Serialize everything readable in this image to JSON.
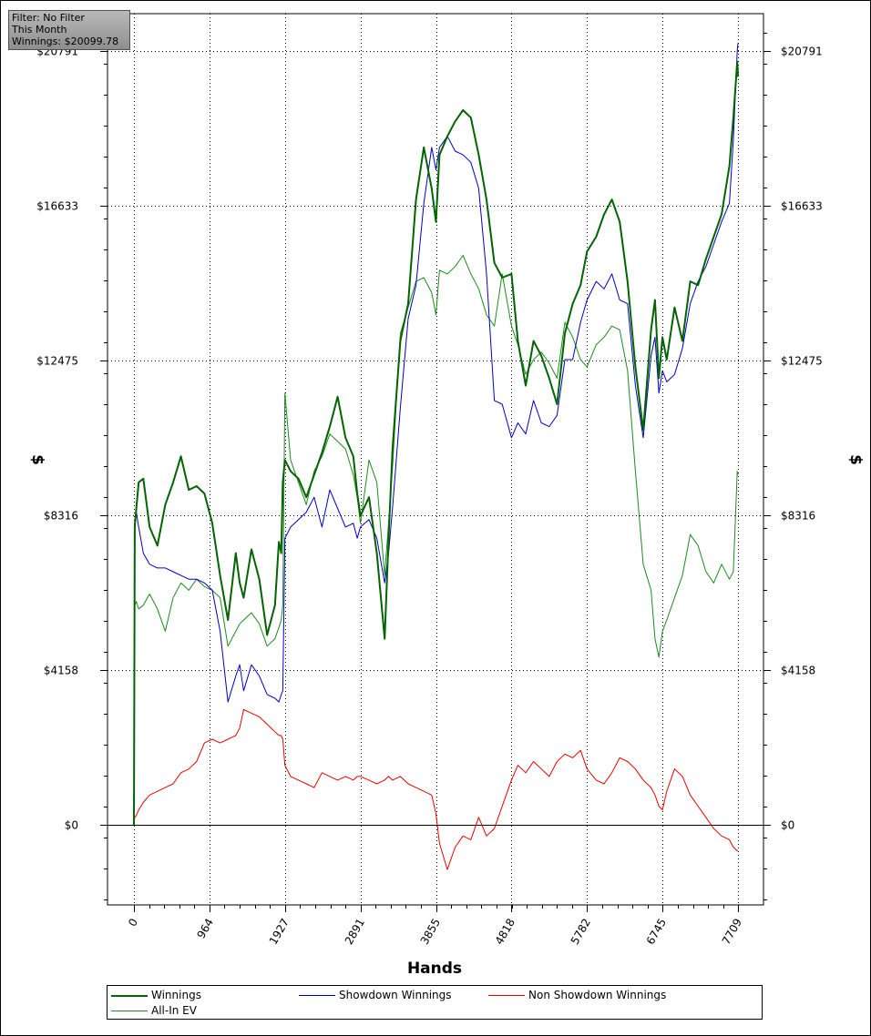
{
  "filter_box": {
    "line1": "Filter: No Filter",
    "line2": "This Month",
    "line3": "Winnings: $20099.78"
  },
  "colors": {
    "winnings": "#006400",
    "showdown": "#0000cc",
    "non_showdown": "#ee0000",
    "allin_ev": "#1e8c1e",
    "grid": "#000000"
  },
  "chart_data": {
    "type": "line",
    "title": "",
    "xlabel": "Hands",
    "ylabel": "$",
    "xlim": [
      0,
      7709
    ],
    "ylim": [
      -2000,
      22000
    ],
    "x_ticks": [
      "0",
      "964",
      "1927",
      "2891",
      "3855",
      "4818",
      "5782",
      "6745",
      "7709"
    ],
    "x_tick_values": [
      0,
      964,
      1927,
      2891,
      3855,
      4818,
      5782,
      6745,
      7709
    ],
    "y_ticks": [
      "$0",
      "$4158",
      "$8316",
      "$12475",
      "$16633",
      "$20791"
    ],
    "y_tick_values": [
      0,
      4158,
      8316,
      12475,
      16633,
      20791
    ],
    "grid": true,
    "legend_position": "bottom",
    "series": [
      {
        "name": "Winnings",
        "x": [
          0,
          10,
          30,
          60,
          120,
          200,
          300,
          400,
          500,
          600,
          700,
          800,
          900,
          1000,
          1100,
          1200,
          1300,
          1350,
          1400,
          1500,
          1600,
          1700,
          1800,
          1850,
          1880,
          1900,
          1927,
          2000,
          2100,
          2200,
          2300,
          2400,
          2500,
          2600,
          2700,
          2800,
          2850,
          2891,
          3000,
          3100,
          3200,
          3250,
          3300,
          3400,
          3500,
          3600,
          3700,
          3800,
          3855,
          3900,
          4000,
          4100,
          4200,
          4300,
          4400,
          4500,
          4600,
          4700,
          4818,
          4900,
          5000,
          5100,
          5200,
          5300,
          5400,
          5500,
          5600,
          5700,
          5782,
          5900,
          6000,
          6100,
          6200,
          6300,
          6400,
          6500,
          6600,
          6650,
          6700,
          6745,
          6800,
          6900,
          7000,
          7100,
          7200,
          7300,
          7400,
          7500,
          7600,
          7650,
          7700,
          7709
        ],
        "values": [
          0,
          8000,
          8500,
          9200,
          9300,
          8000,
          7500,
          8600,
          9200,
          9900,
          9000,
          9100,
          8900,
          8100,
          6700,
          5500,
          7300,
          6500,
          6100,
          7400,
          6600,
          5100,
          5900,
          7600,
          7300,
          9200,
          9800,
          9500,
          9300,
          8800,
          9400,
          10000,
          10700,
          11500,
          10400,
          9900,
          8900,
          8300,
          8800,
          7300,
          5000,
          7700,
          10100,
          13000,
          14000,
          16800,
          18200,
          17100,
          16200,
          18000,
          18500,
          18900,
          19200,
          19000,
          18000,
          16800,
          15100,
          14700,
          14800,
          13000,
          11800,
          13000,
          12600,
          12000,
          11300,
          13200,
          14000,
          14500,
          15400,
          15800,
          16400,
          16800,
          16200,
          14600,
          12300,
          10600,
          13300,
          14100,
          12000,
          13100,
          12500,
          13900,
          13000,
          14600,
          14500,
          15200,
          15800,
          16400,
          17700,
          19000,
          20500,
          20100
        ]
      },
      {
        "name": "Showdown Winnings",
        "x": [
          0,
          10,
          30,
          60,
          120,
          200,
          300,
          400,
          500,
          600,
          700,
          800,
          900,
          1000,
          1100,
          1200,
          1300,
          1350,
          1400,
          1500,
          1600,
          1700,
          1800,
          1850,
          1880,
          1900,
          1927,
          2000,
          2100,
          2200,
          2300,
          2400,
          2500,
          2600,
          2700,
          2800,
          2850,
          2891,
          3000,
          3100,
          3200,
          3250,
          3300,
          3400,
          3500,
          3600,
          3700,
          3800,
          3855,
          3900,
          4000,
          4100,
          4200,
          4300,
          4400,
          4500,
          4600,
          4700,
          4818,
          4900,
          5000,
          5100,
          5200,
          5300,
          5400,
          5500,
          5600,
          5700,
          5782,
          5900,
          6000,
          6100,
          6200,
          6300,
          6400,
          6500,
          6600,
          6650,
          6700,
          6745,
          6800,
          6900,
          7000,
          7100,
          7200,
          7300,
          7400,
          7500,
          7600,
          7650,
          7700,
          7709
        ],
        "values": [
          0,
          8200,
          8400,
          8000,
          7300,
          7000,
          6900,
          6900,
          6800,
          6700,
          6600,
          6600,
          6500,
          6300,
          5200,
          3300,
          4000,
          4300,
          3600,
          4300,
          4000,
          3500,
          3400,
          3300,
          3500,
          3600,
          7700,
          8000,
          8200,
          8400,
          8800,
          8000,
          9000,
          8500,
          8000,
          8100,
          7700,
          8000,
          8200,
          7700,
          6500,
          7300,
          8500,
          11200,
          13600,
          14500,
          16700,
          18200,
          17600,
          18200,
          18500,
          18100,
          18000,
          17800,
          17100,
          14800,
          11400,
          11300,
          10400,
          10800,
          10500,
          11400,
          10800,
          10700,
          11000,
          12500,
          12500,
          13500,
          14100,
          14600,
          14400,
          14800,
          14100,
          14000,
          11800,
          10400,
          12600,
          13100,
          11600,
          12200,
          11900,
          12100,
          12800,
          14000,
          14600,
          15000,
          15600,
          16200,
          16700,
          18400,
          20800,
          21000
        ]
      },
      {
        "name": "Non Showdown Winnings",
        "x": [
          0,
          10,
          30,
          60,
          120,
          200,
          300,
          400,
          500,
          600,
          700,
          800,
          900,
          1000,
          1100,
          1200,
          1300,
          1350,
          1400,
          1500,
          1600,
          1700,
          1800,
          1850,
          1880,
          1900,
          1927,
          2000,
          2100,
          2200,
          2300,
          2400,
          2500,
          2600,
          2700,
          2800,
          2850,
          2891,
          3000,
          3100,
          3200,
          3250,
          3300,
          3400,
          3500,
          3600,
          3700,
          3800,
          3855,
          3900,
          4000,
          4100,
          4200,
          4300,
          4400,
          4500,
          4600,
          4700,
          4818,
          4900,
          5000,
          5100,
          5200,
          5300,
          5400,
          5500,
          5600,
          5700,
          5782,
          5900,
          6000,
          6100,
          6200,
          6300,
          6400,
          6500,
          6600,
          6650,
          6700,
          6745,
          6800,
          6900,
          7000,
          7100,
          7200,
          7300,
          7400,
          7500,
          7600,
          7650,
          7700,
          7709
        ],
        "values": [
          0,
          200,
          250,
          400,
          600,
          800,
          900,
          1000,
          1100,
          1400,
          1500,
          1700,
          2200,
          2300,
          2200,
          2300,
          2400,
          2600,
          3100,
          3000,
          2900,
          2700,
          2500,
          2400,
          2400,
          2300,
          1600,
          1300,
          1200,
          1100,
          1000,
          1400,
          1300,
          1200,
          1300,
          1200,
          1300,
          1300,
          1200,
          1100,
          1200,
          1300,
          1200,
          1300,
          1100,
          1000,
          900,
          800,
          300,
          -500,
          -1200,
          -600,
          -300,
          -400,
          200,
          -300,
          -100,
          500,
          1200,
          1600,
          1400,
          1700,
          1500,
          1300,
          1700,
          1900,
          1800,
          2000,
          1500,
          1200,
          1100,
          1400,
          1800,
          1700,
          1500,
          1200,
          1000,
          800,
          500,
          400,
          900,
          1500,
          1300,
          800,
          500,
          200,
          -100,
          -300,
          -400,
          -600,
          -700,
          -700
        ]
      },
      {
        "name": "All-In EV",
        "x": [
          0,
          10,
          30,
          60,
          120,
          200,
          300,
          400,
          500,
          600,
          700,
          800,
          900,
          1000,
          1100,
          1200,
          1300,
          1350,
          1400,
          1500,
          1600,
          1700,
          1800,
          1850,
          1880,
          1900,
          1927,
          2000,
          2100,
          2200,
          2300,
          2400,
          2500,
          2600,
          2700,
          2800,
          2850,
          2891,
          3000,
          3100,
          3200,
          3250,
          3300,
          3400,
          3500,
          3600,
          3700,
          3800,
          3855,
          3900,
          4000,
          4100,
          4200,
          4300,
          4400,
          4500,
          4600,
          4700,
          4818,
          4900,
          5000,
          5100,
          5200,
          5300,
          5400,
          5500,
          5600,
          5700,
          5782,
          5900,
          6000,
          6100,
          6200,
          6300,
          6400,
          6500,
          6600,
          6650,
          6700,
          6745,
          6800,
          6900,
          7000,
          7100,
          7200,
          7300,
          7400,
          7500,
          7600,
          7650,
          7700,
          7709
        ],
        "values": [
          0,
          5900,
          6000,
          5800,
          5900,
          6200,
          5800,
          5200,
          6100,
          6500,
          6300,
          6600,
          6400,
          6300,
          6100,
          4800,
          5200,
          5400,
          5500,
          5700,
          5400,
          4800,
          5000,
          5300,
          5500,
          5900,
          11600,
          9800,
          9200,
          8600,
          9500,
          9900,
          10500,
          10300,
          10100,
          9400,
          8800,
          8100,
          9800,
          9200,
          6700,
          8100,
          9600,
          13200,
          13900,
          14600,
          14700,
          14300,
          13700,
          14900,
          14800,
          15000,
          15300,
          14800,
          14400,
          13700,
          13400,
          14800,
          13400,
          12900,
          12100,
          12500,
          12700,
          12400,
          12000,
          13500,
          13100,
          12500,
          12300,
          12900,
          13100,
          13400,
          13300,
          12200,
          9500,
          7000,
          6300,
          5000,
          4500,
          5200,
          5500,
          6100,
          6700,
          7800,
          7500,
          6800,
          6500,
          7000,
          6600,
          6800,
          9500,
          9400
        ]
      }
    ]
  }
}
